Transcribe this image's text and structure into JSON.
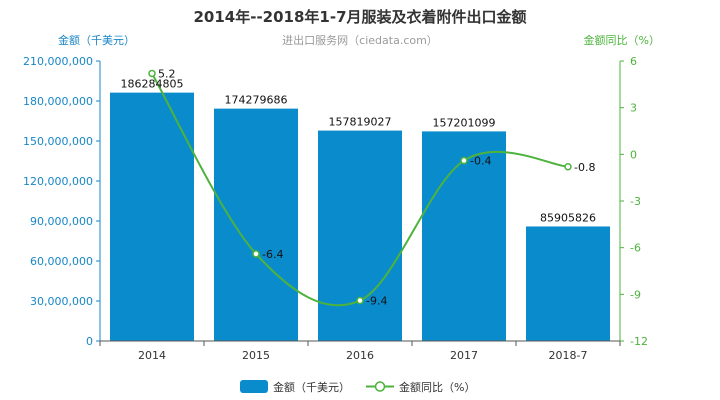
{
  "chart_data": {
    "type": "bar",
    "title": "2014年--2018年1-7月服装及衣着附件出口金额",
    "subtitle": "进出口服务网（ciedata.com）",
    "ylabel_left": "金额（千美元）",
    "ylabel_right": "金额同比（%）",
    "categories": [
      "2014",
      "2015",
      "2016",
      "2017",
      "2018-7"
    ],
    "series": [
      {
        "name": "金额（千美元）",
        "type": "bar",
        "axis": "left",
        "values": [
          186284805,
          174279686,
          157819027,
          157201099,
          85905826
        ],
        "labels": [
          "186284805",
          "174279686",
          "157819027",
          "157201099",
          "85905826"
        ]
      },
      {
        "name": "金额同比（%）",
        "type": "line",
        "axis": "right",
        "values": [
          5.2,
          -6.4,
          -9.4,
          -0.4,
          -0.8
        ],
        "labels": [
          "5.2",
          "-6.4",
          "-9.4",
          "-0.4",
          "-0.8"
        ]
      }
    ],
    "ylim_left": [
      0,
      210000000
    ],
    "yticks_left": [
      "0",
      "30,000,000",
      "60,000,000",
      "90,000,000",
      "120,000,000",
      "150,000,000",
      "180,000,000",
      "210,000,000"
    ],
    "ylim_right": [
      -12,
      6
    ],
    "yticks_right": [
      "-12",
      "-9",
      "-6",
      "-3",
      "0",
      "3",
      "6"
    ],
    "grid": false,
    "legend_placement": "bottom",
    "colors": {
      "bar": "#0a8ccc",
      "line": "#4db33d",
      "left_axis": "#1a86c8",
      "right_axis": "#4db33d"
    }
  }
}
